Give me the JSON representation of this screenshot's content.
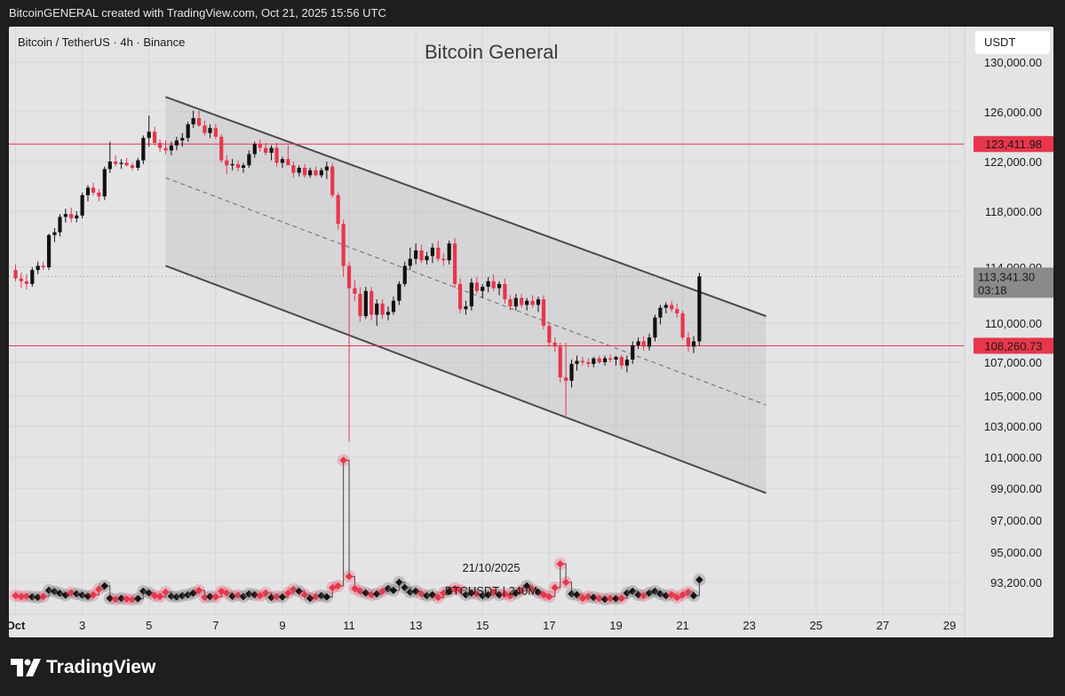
{
  "header": {
    "caption": "BitcoinGENERAL created with TradingView.com, Oct 21, 2025 15:56 UTC"
  },
  "chart_header": {
    "symbol": "Bitcoin / TetherUS · 4h · Binance",
    "title": "Bitcoin General",
    "currency_button": "USDT"
  },
  "footer": {
    "brand": "TradingView",
    "logo_icon": "tradingview-logo-icon"
  },
  "colors": {
    "up": "#111111",
    "down": "#e8364a",
    "level_line": "#e8364a",
    "channel_line": "#4a4a4a",
    "panel": "#e4e4e7"
  },
  "chart_data": {
    "type": "candlestick",
    "title": "Bitcoin General",
    "symbol": "BTCUSDT",
    "interval": "4h",
    "exchange": "Binance",
    "price_axis": {
      "ticks": [
        "130,000.00",
        "126,000.00",
        "122,000.00",
        "118,000.00",
        "114,000.00",
        "110,000.00",
        "107,000.00",
        "105,000.00",
        "103,000.00",
        "101,000.00",
        "99,000.00",
        "97,000.00",
        "95,000.00",
        "93,200.00"
      ],
      "tick_values": [
        130000,
        126000,
        122000,
        118000,
        114000,
        110000,
        107000,
        105000,
        103000,
        101000,
        99000,
        97000,
        95000,
        93200
      ]
    },
    "time_axis": {
      "ticks": [
        "Oct",
        "3",
        "5",
        "7",
        "9",
        "11",
        "13",
        "15",
        "17",
        "19",
        "21",
        "23",
        "25",
        "27",
        "29"
      ],
      "tick_days": [
        1,
        3,
        5,
        7,
        9,
        11,
        13,
        15,
        17,
        19,
        21,
        23,
        25,
        27,
        29
      ],
      "range_days": [
        0.8,
        29.4
      ]
    },
    "levels": [
      {
        "label": "123,411.98",
        "value": 123411.98
      },
      {
        "label": "108,260.73",
        "value": 108260.73
      }
    ],
    "last_price": {
      "label": "113,341.30",
      "countdown": "03:18",
      "value": 113341.3
    },
    "channel": {
      "upper": [
        [
          5.5,
          127200
        ],
        [
          23.5,
          110500
        ]
      ],
      "middle": [
        [
          5.5,
          120700
        ],
        [
          23.5,
          104400
        ]
      ],
      "lower": [
        [
          5.5,
          114100
        ],
        [
          23.5,
          98700
        ]
      ]
    },
    "volume_overlay": {
      "date": "21/10/2025",
      "label": "BTCUSDT | 240M"
    },
    "candles": [
      [
        1.0,
        113800,
        114200,
        113000,
        113200
      ],
      [
        1.17,
        113200,
        113600,
        112500,
        113000
      ],
      [
        1.33,
        113000,
        113500,
        112400,
        112800
      ],
      [
        1.5,
        112800,
        114000,
        112600,
        113800
      ],
      [
        1.67,
        113800,
        114400,
        113500,
        114100
      ],
      [
        1.83,
        114100,
        114400,
        113800,
        114000
      ],
      [
        2.0,
        114000,
        116400,
        113800,
        116300
      ],
      [
        2.17,
        116300,
        116800,
        115800,
        116500
      ],
      [
        2.33,
        116500,
        117800,
        116200,
        117600
      ],
      [
        2.5,
        117600,
        118200,
        117200,
        117800
      ],
      [
        2.67,
        117800,
        118300,
        117200,
        117500
      ],
      [
        2.83,
        117500,
        118000,
        117200,
        117700
      ],
      [
        3.0,
        117700,
        119500,
        117500,
        119300
      ],
      [
        3.17,
        119300,
        120100,
        118800,
        119900
      ],
      [
        3.33,
        119900,
        120300,
        119300,
        119500
      ],
      [
        3.5,
        119500,
        119800,
        118800,
        119200
      ],
      [
        3.67,
        119200,
        121600,
        118900,
        121400
      ],
      [
        3.83,
        121400,
        123600,
        121100,
        122000
      ],
      [
        4.0,
        122000,
        122500,
        121600,
        121800
      ],
      [
        4.17,
        121800,
        122200,
        121400,
        121900
      ],
      [
        4.33,
        121900,
        122300,
        121600,
        121700
      ],
      [
        4.5,
        121700,
        121900,
        121300,
        121500
      ],
      [
        4.67,
        121500,
        122300,
        121300,
        122100
      ],
      [
        4.83,
        122100,
        124100,
        121800,
        123900
      ],
      [
        5.0,
        123900,
        125700,
        123200,
        124400
      ],
      [
        5.17,
        124400,
        124800,
        123300,
        123500
      ],
      [
        5.33,
        123500,
        123800,
        122800,
        123100
      ],
      [
        5.5,
        123100,
        123700,
        122600,
        122900
      ],
      [
        5.67,
        122900,
        123600,
        122500,
        123300
      ],
      [
        5.83,
        123300,
        124000,
        122900,
        123700
      ],
      [
        6.0,
        123700,
        124300,
        123200,
        123900
      ],
      [
        6.17,
        123900,
        125200,
        123600,
        125000
      ],
      [
        6.33,
        125000,
        126100,
        124700,
        125500
      ],
      [
        6.5,
        125500,
        126100,
        124800,
        124900
      ],
      [
        6.67,
        124900,
        125300,
        124100,
        124300
      ],
      [
        6.83,
        124300,
        125000,
        123900,
        124700
      ],
      [
        7.0,
        124700,
        125000,
        123800,
        124000
      ],
      [
        7.17,
        124000,
        124200,
        121900,
        122100
      ],
      [
        7.33,
        122100,
        122500,
        121000,
        121700
      ],
      [
        7.5,
        121700,
        122200,
        121300,
        121800
      ],
      [
        7.67,
        121800,
        122100,
        121200,
        121500
      ],
      [
        7.83,
        121500,
        121900,
        121100,
        121700
      ],
      [
        8.0,
        121700,
        122900,
        121500,
        122600
      ],
      [
        8.17,
        122600,
        123600,
        122300,
        123400
      ],
      [
        8.33,
        123400,
        123800,
        122800,
        123100
      ],
      [
        8.5,
        123100,
        123500,
        122500,
        122700
      ],
      [
        8.67,
        122700,
        123300,
        122100,
        123100
      ],
      [
        8.83,
        123100,
        123500,
        121600,
        121900
      ],
      [
        9.0,
        121900,
        122400,
        121500,
        122200
      ],
      [
        9.17,
        122200,
        123300,
        121800,
        121700
      ],
      [
        9.33,
        121700,
        122000,
        120700,
        121100
      ],
      [
        9.5,
        121100,
        121700,
        120800,
        121500
      ],
      [
        9.67,
        121500,
        121800,
        120700,
        120900
      ],
      [
        9.83,
        120900,
        121500,
        120700,
        121300
      ],
      [
        10.0,
        121300,
        121600,
        120800,
        120900
      ],
      [
        10.17,
        120900,
        121500,
        120700,
        121300
      ],
      [
        10.33,
        121300,
        122000,
        120600,
        121600
      ],
      [
        10.5,
        121600,
        121900,
        119100,
        119300
      ],
      [
        10.67,
        119300,
        119500,
        116700,
        117100
      ],
      [
        10.83,
        117100,
        117400,
        113300,
        114100
      ],
      [
        11.0,
        114100,
        114400,
        102000,
        112500
      ],
      [
        11.17,
        112500,
        113100,
        111600,
        112100
      ],
      [
        11.33,
        112100,
        112600,
        110100,
        110500
      ],
      [
        11.5,
        110500,
        112600,
        110300,
        112300
      ],
      [
        11.67,
        112300,
        112600,
        110200,
        110600
      ],
      [
        11.83,
        110600,
        111700,
        109800,
        111400
      ],
      [
        12.0,
        111400,
        111700,
        110300,
        110600
      ],
      [
        12.17,
        110600,
        111200,
        110200,
        110800
      ],
      [
        12.33,
        110800,
        111900,
        110600,
        111600
      ],
      [
        12.5,
        111600,
        113000,
        111300,
        112800
      ],
      [
        12.67,
        112800,
        114400,
        112600,
        114100
      ],
      [
        12.83,
        114100,
        115400,
        113800,
        114600
      ],
      [
        13.0,
        114600,
        115700,
        114200,
        115200
      ],
      [
        13.17,
        115200,
        115600,
        114300,
        114500
      ],
      [
        13.33,
        114500,
        115100,
        114200,
        114800
      ],
      [
        13.5,
        114800,
        115700,
        114300,
        115400
      ],
      [
        13.67,
        115400,
        115900,
        114400,
        114600
      ],
      [
        13.83,
        114600,
        115000,
        114100,
        114500
      ],
      [
        14.0,
        114500,
        115900,
        114200,
        115700
      ],
      [
        14.17,
        115700,
        116100,
        112500,
        112800
      ],
      [
        14.33,
        112800,
        113200,
        110700,
        111000
      ],
      [
        14.5,
        111000,
        111600,
        110600,
        111200
      ],
      [
        14.67,
        111200,
        113200,
        110900,
        112900
      ],
      [
        14.83,
        112900,
        113300,
        112100,
        112300
      ],
      [
        15.0,
        112300,
        112800,
        111800,
        112600
      ],
      [
        15.17,
        112600,
        113300,
        112200,
        113000
      ],
      [
        15.33,
        113000,
        113500,
        112300,
        112500
      ],
      [
        15.5,
        112500,
        113000,
        112000,
        112800
      ],
      [
        15.67,
        112800,
        113200,
        111400,
        111700
      ],
      [
        15.83,
        111700,
        112000,
        110900,
        111200
      ],
      [
        16.0,
        111200,
        112100,
        110900,
        111800
      ],
      [
        16.17,
        111800,
        112100,
        111100,
        111300
      ],
      [
        16.33,
        111300,
        111800,
        110900,
        111600
      ],
      [
        16.5,
        111600,
        112000,
        111100,
        111300
      ],
      [
        16.67,
        111300,
        111900,
        110800,
        111700
      ],
      [
        16.83,
        111700,
        112000,
        109500,
        109800
      ],
      [
        17.0,
        109800,
        110000,
        108200,
        108500
      ],
      [
        17.17,
        108500,
        108900,
        107800,
        108200
      ],
      [
        17.33,
        108200,
        108500,
        105800,
        106100
      ],
      [
        17.5,
        106100,
        108500,
        103700,
        105900
      ],
      [
        17.67,
        105900,
        107200,
        105500,
        106900
      ],
      [
        17.83,
        106900,
        107500,
        106500,
        107100
      ],
      [
        18.0,
        107100,
        107400,
        106800,
        107000
      ],
      [
        18.17,
        107000,
        107300,
        106700,
        106900
      ],
      [
        18.33,
        106900,
        107400,
        106700,
        107300
      ],
      [
        18.5,
        107300,
        107500,
        106900,
        107000
      ],
      [
        18.67,
        107000,
        107500,
        106800,
        107300
      ],
      [
        18.83,
        107300,
        107600,
        107000,
        107200
      ],
      [
        19.0,
        107200,
        107500,
        106800,
        107400
      ],
      [
        19.17,
        107400,
        107600,
        106600,
        106800
      ],
      [
        19.33,
        106800,
        107500,
        106400,
        107200
      ],
      [
        19.5,
        107200,
        108600,
        106900,
        108300
      ],
      [
        19.67,
        108300,
        108900,
        108000,
        108600
      ],
      [
        19.83,
        108600,
        109000,
        107900,
        108200
      ],
      [
        20.0,
        108200,
        109200,
        107900,
        108900
      ],
      [
        20.17,
        108900,
        110600,
        108600,
        110400
      ],
      [
        20.33,
        110400,
        111300,
        109900,
        111100
      ],
      [
        20.5,
        111100,
        111500,
        110700,
        111300
      ],
      [
        20.67,
        111300,
        111600,
        110800,
        111000
      ],
      [
        20.83,
        111000,
        111400,
        110400,
        110700
      ],
      [
        21.0,
        110700,
        110900,
        108700,
        108900
      ],
      [
        21.17,
        108900,
        109300,
        107800,
        108200
      ],
      [
        21.33,
        108200,
        109000,
        107700,
        108600
      ],
      [
        21.5,
        108600,
        113600,
        108300,
        113341.3
      ]
    ],
    "volumes": [
      [
        1.0,
        92450
      ],
      [
        1.17,
        92400
      ],
      [
        1.33,
        92420
      ],
      [
        1.5,
        92380
      ],
      [
        1.67,
        92360
      ],
      [
        1.83,
        92400
      ],
      [
        2.0,
        92750
      ],
      [
        2.17,
        92680
      ],
      [
        2.33,
        92580
      ],
      [
        2.5,
        92480
      ],
      [
        2.67,
        92620
      ],
      [
        2.83,
        92550
      ],
      [
        3.0,
        92480
      ],
      [
        3.17,
        92420
      ],
      [
        3.33,
        92500
      ],
      [
        3.5,
        92820
      ],
      [
        3.67,
        93000
      ],
      [
        3.83,
        92300
      ],
      [
        4.0,
        92250
      ],
      [
        4.17,
        92300
      ],
      [
        4.33,
        92260
      ],
      [
        4.5,
        92240
      ],
      [
        4.67,
        92280
      ],
      [
        4.83,
        92700
      ],
      [
        5.0,
        92600
      ],
      [
        5.17,
        92450
      ],
      [
        5.33,
        92400
      ],
      [
        5.5,
        92650
      ],
      [
        5.67,
        92420
      ],
      [
        5.83,
        92380
      ],
      [
        6.0,
        92450
      ],
      [
        6.17,
        92500
      ],
      [
        6.33,
        92600
      ],
      [
        6.5,
        92750
      ],
      [
        6.67,
        92350
      ],
      [
        6.83,
        92400
      ],
      [
        7.0,
        92380
      ],
      [
        7.17,
        92700
      ],
      [
        7.33,
        92600
      ],
      [
        7.5,
        92420
      ],
      [
        7.67,
        92480
      ],
      [
        7.83,
        92400
      ],
      [
        8.0,
        92550
      ],
      [
        8.17,
        92500
      ],
      [
        8.33,
        92450
      ],
      [
        8.5,
        92600
      ],
      [
        8.67,
        92350
      ],
      [
        8.83,
        92400
      ],
      [
        9.0,
        92380
      ],
      [
        9.17,
        92600
      ],
      [
        9.33,
        92800
      ],
      [
        9.5,
        92700
      ],
      [
        9.67,
        92500
      ],
      [
        9.83,
        92300
      ],
      [
        10.0,
        92400
      ],
      [
        10.17,
        92450
      ],
      [
        10.33,
        92380
      ],
      [
        10.5,
        92900
      ],
      [
        10.67,
        93000
      ],
      [
        10.83,
        100800
      ],
      [
        11.0,
        93550
      ],
      [
        11.17,
        92850
      ],
      [
        11.33,
        92700
      ],
      [
        11.5,
        92600
      ],
      [
        11.67,
        92500
      ],
      [
        11.83,
        92550
      ],
      [
        12.0,
        92700
      ],
      [
        12.17,
        92850
      ],
      [
        12.33,
        92750
      ],
      [
        12.5,
        93200
      ],
      [
        12.67,
        92900
      ],
      [
        12.83,
        92650
      ],
      [
        13.0,
        92700
      ],
      [
        13.17,
        92550
      ],
      [
        13.33,
        92450
      ],
      [
        13.5,
        92500
      ],
      [
        13.67,
        92350
      ],
      [
        13.83,
        92600
      ],
      [
        14.0,
        92700
      ],
      [
        14.17,
        92850
      ],
      [
        14.33,
        92750
      ],
      [
        14.5,
        92500
      ],
      [
        14.67,
        92600
      ],
      [
        14.83,
        92550
      ],
      [
        15.0,
        92450
      ],
      [
        15.17,
        92500
      ],
      [
        15.33,
        92650
      ],
      [
        15.5,
        92500
      ],
      [
        15.67,
        92550
      ],
      [
        15.83,
        92450
      ],
      [
        16.0,
        92600
      ],
      [
        16.17,
        92750
      ],
      [
        16.33,
        93000
      ],
      [
        16.5,
        92800
      ],
      [
        16.67,
        92650
      ],
      [
        16.83,
        92500
      ],
      [
        17.0,
        92400
      ],
      [
        17.17,
        92900
      ],
      [
        17.33,
        94300
      ],
      [
        17.5,
        93200
      ],
      [
        17.67,
        92550
      ],
      [
        17.83,
        92500
      ],
      [
        18.0,
        92300
      ],
      [
        18.17,
        92400
      ],
      [
        18.33,
        92350
      ],
      [
        18.5,
        92300
      ],
      [
        18.67,
        92250
      ],
      [
        18.83,
        92300
      ],
      [
        19.0,
        92280
      ],
      [
        19.17,
        92300
      ],
      [
        19.33,
        92600
      ],
      [
        19.5,
        92700
      ],
      [
        19.67,
        92500
      ],
      [
        19.83,
        92450
      ],
      [
        20.0,
        92600
      ],
      [
        20.17,
        92700
      ],
      [
        20.33,
        92550
      ],
      [
        20.5,
        92450
      ],
      [
        20.67,
        92500
      ],
      [
        20.83,
        92350
      ],
      [
        21.0,
        92500
      ],
      [
        21.17,
        92650
      ],
      [
        21.33,
        92450
      ],
      [
        21.5,
        93350
      ]
    ]
  }
}
